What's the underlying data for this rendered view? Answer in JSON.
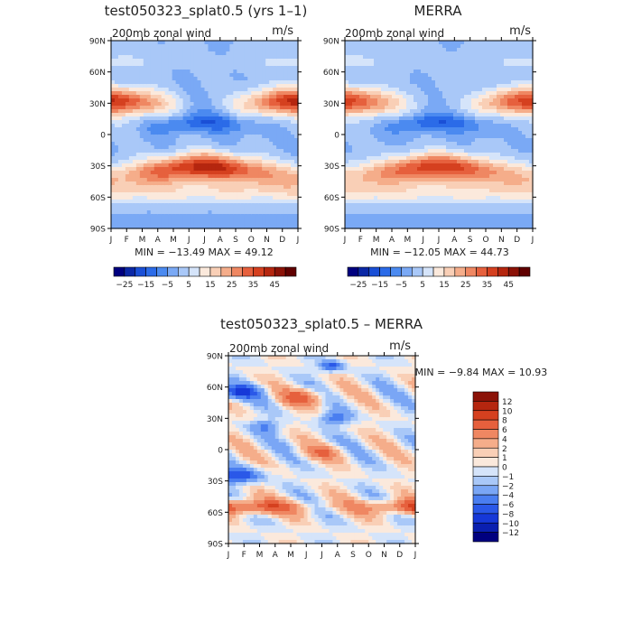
{
  "titles": {
    "top_left": "test050323_splat0.5 (yrs 1–1)",
    "top_right": "MERRA",
    "bottom": "test050323_splat0.5 – MERRA"
  },
  "panel_labels": {
    "left": "200mb zonal wind",
    "right": "m/s"
  },
  "minmax": {
    "top_left": "MIN = −13.49 MAX =  49.12",
    "top_right": "MIN = −12.05 MAX =  44.73",
    "bottom": "MIN =  −9.84 MAX =  10.93"
  },
  "chart_data": [
    {
      "type": "heatmap",
      "title": "test050323_splat0.5 (yrs 1–1)",
      "subtitle": "200mb zonal wind",
      "units": "m/s",
      "x": [
        "J",
        "F",
        "M",
        "A",
        "M",
        "J",
        "J",
        "A",
        "S",
        "O",
        "N",
        "D",
        "J"
      ],
      "y": [
        "90N",
        "60N",
        "30N",
        "0",
        "30S",
        "60S",
        "90S"
      ],
      "min": -13.49,
      "max": 49.12,
      "colorbar": {
        "labels": [
          "−25",
          "−15",
          "−5",
          "5",
          "15",
          "25",
          "35",
          "45"
        ],
        "levels": [
          -30,
          -25,
          -20,
          -15,
          -10,
          -5,
          0,
          5,
          10,
          15,
          20,
          25,
          30,
          35,
          40,
          45,
          50
        ],
        "colors": [
          "#00007f",
          "#0b28a6",
          "#1a4fd6",
          "#2b6be8",
          "#4b8af0",
          "#7aa9f5",
          "#a9c8f8",
          "#d5e4fa",
          "#fbe9dc",
          "#f9cfb6",
          "#f5ad8a",
          "#ef8762",
          "#e6603d",
          "#d5401f",
          "#b5260f",
          "#8b1207",
          "#600000"
        ]
      }
    },
    {
      "type": "heatmap",
      "title": "MERRA",
      "subtitle": "200mb zonal wind",
      "units": "m/s",
      "x": [
        "J",
        "F",
        "M",
        "A",
        "M",
        "J",
        "J",
        "A",
        "S",
        "O",
        "N",
        "D",
        "J"
      ],
      "y": [
        "90N",
        "60N",
        "30N",
        "0",
        "30S",
        "60S",
        "90S"
      ],
      "min": -12.05,
      "max": 44.73,
      "colorbar": {
        "labels": [
          "−25",
          "−15",
          "−5",
          "5",
          "15",
          "25",
          "35",
          "45"
        ],
        "levels": [
          -30,
          -25,
          -20,
          -15,
          -10,
          -5,
          0,
          5,
          10,
          15,
          20,
          25,
          30,
          35,
          40,
          45,
          50
        ],
        "colors": [
          "#00007f",
          "#0b28a6",
          "#1a4fd6",
          "#2b6be8",
          "#4b8af0",
          "#7aa9f5",
          "#a9c8f8",
          "#d5e4fa",
          "#fbe9dc",
          "#f9cfb6",
          "#f5ad8a",
          "#ef8762",
          "#e6603d",
          "#d5401f",
          "#b5260f",
          "#8b1207",
          "#600000"
        ]
      }
    },
    {
      "type": "heatmap",
      "title": "test050323_splat0.5 – MERRA",
      "subtitle": "200mb zonal wind",
      "units": "m/s",
      "x": [
        "J",
        "F",
        "M",
        "A",
        "M",
        "J",
        "J",
        "A",
        "S",
        "O",
        "N",
        "D",
        "J"
      ],
      "y": [
        "90N",
        "60N",
        "30N",
        "0",
        "30S",
        "60S",
        "90S"
      ],
      "min": -9.84,
      "max": 10.93,
      "colorbar": {
        "labels": [
          "12",
          "10",
          "8",
          "6",
          "4",
          "2",
          "1",
          "0",
          "−1",
          "−2",
          "−4",
          "−6",
          "−8",
          "−10",
          "−12"
        ],
        "levels": [
          -14,
          -12,
          -10,
          -8,
          -6,
          -4,
          -2,
          -1,
          0,
          1,
          2,
          4,
          6,
          8,
          10,
          12,
          14
        ],
        "colors": [
          "#00007f",
          "#0a1fb0",
          "#1638d8",
          "#2a58e8",
          "#4a7ef0",
          "#7aa6f5",
          "#a9c8f8",
          "#d5e4fa",
          "#fbe9dc",
          "#f9cfb6",
          "#f5ad8a",
          "#ef8762",
          "#e6603d",
          "#d5401f",
          "#b5260f",
          "#8b1207"
        ]
      }
    }
  ]
}
